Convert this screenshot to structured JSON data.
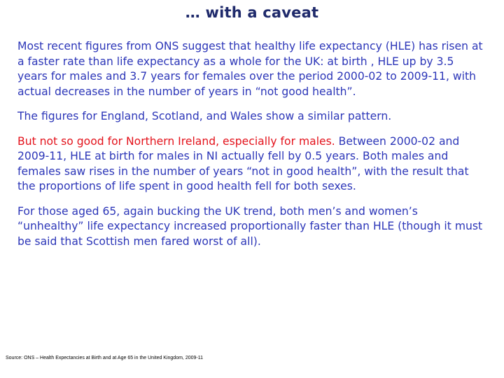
{
  "title": "… with a caveat",
  "paragraphs": {
    "p1": "Most recent figures from ONS suggest that healthy life expectancy (HLE) has risen at a faster rate than life expectancy as a whole for the UK: at birth , HLE up by 3.5 years for males and 3.7 years for females over the period 2000-02 to 2009-11, with actual decreases in the number of years in “not good health”.",
    "p2": "The figures for England, Scotland, and Wales show a similar pattern.",
    "p3_red": "But not so good for Northern Ireland, especially for males.",
    "p3_rest": " Between 2000-02 and 2009-11, HLE at birth for males in NI actually fell by 0.5 years.  Both males and females saw rises in the number of years “not in good health”, with the result that the proportions of life spent in good health fell for both sexes.",
    "p4": "For those aged 65, again bucking the UK trend, both men’s and women’s “unhealthy” life expectancy increased proportionally faster than HLE (though it must be said that Scottish men fared worst of all)."
  },
  "source": "Source: ONS – Health Expectancies at Birth and at Age 65 in the United Kingdom, 2009-11",
  "colors": {
    "title": "#1f2a6b",
    "body_text": "#2c36b8",
    "highlight": "#e3121b",
    "background": "#ffffff"
  }
}
